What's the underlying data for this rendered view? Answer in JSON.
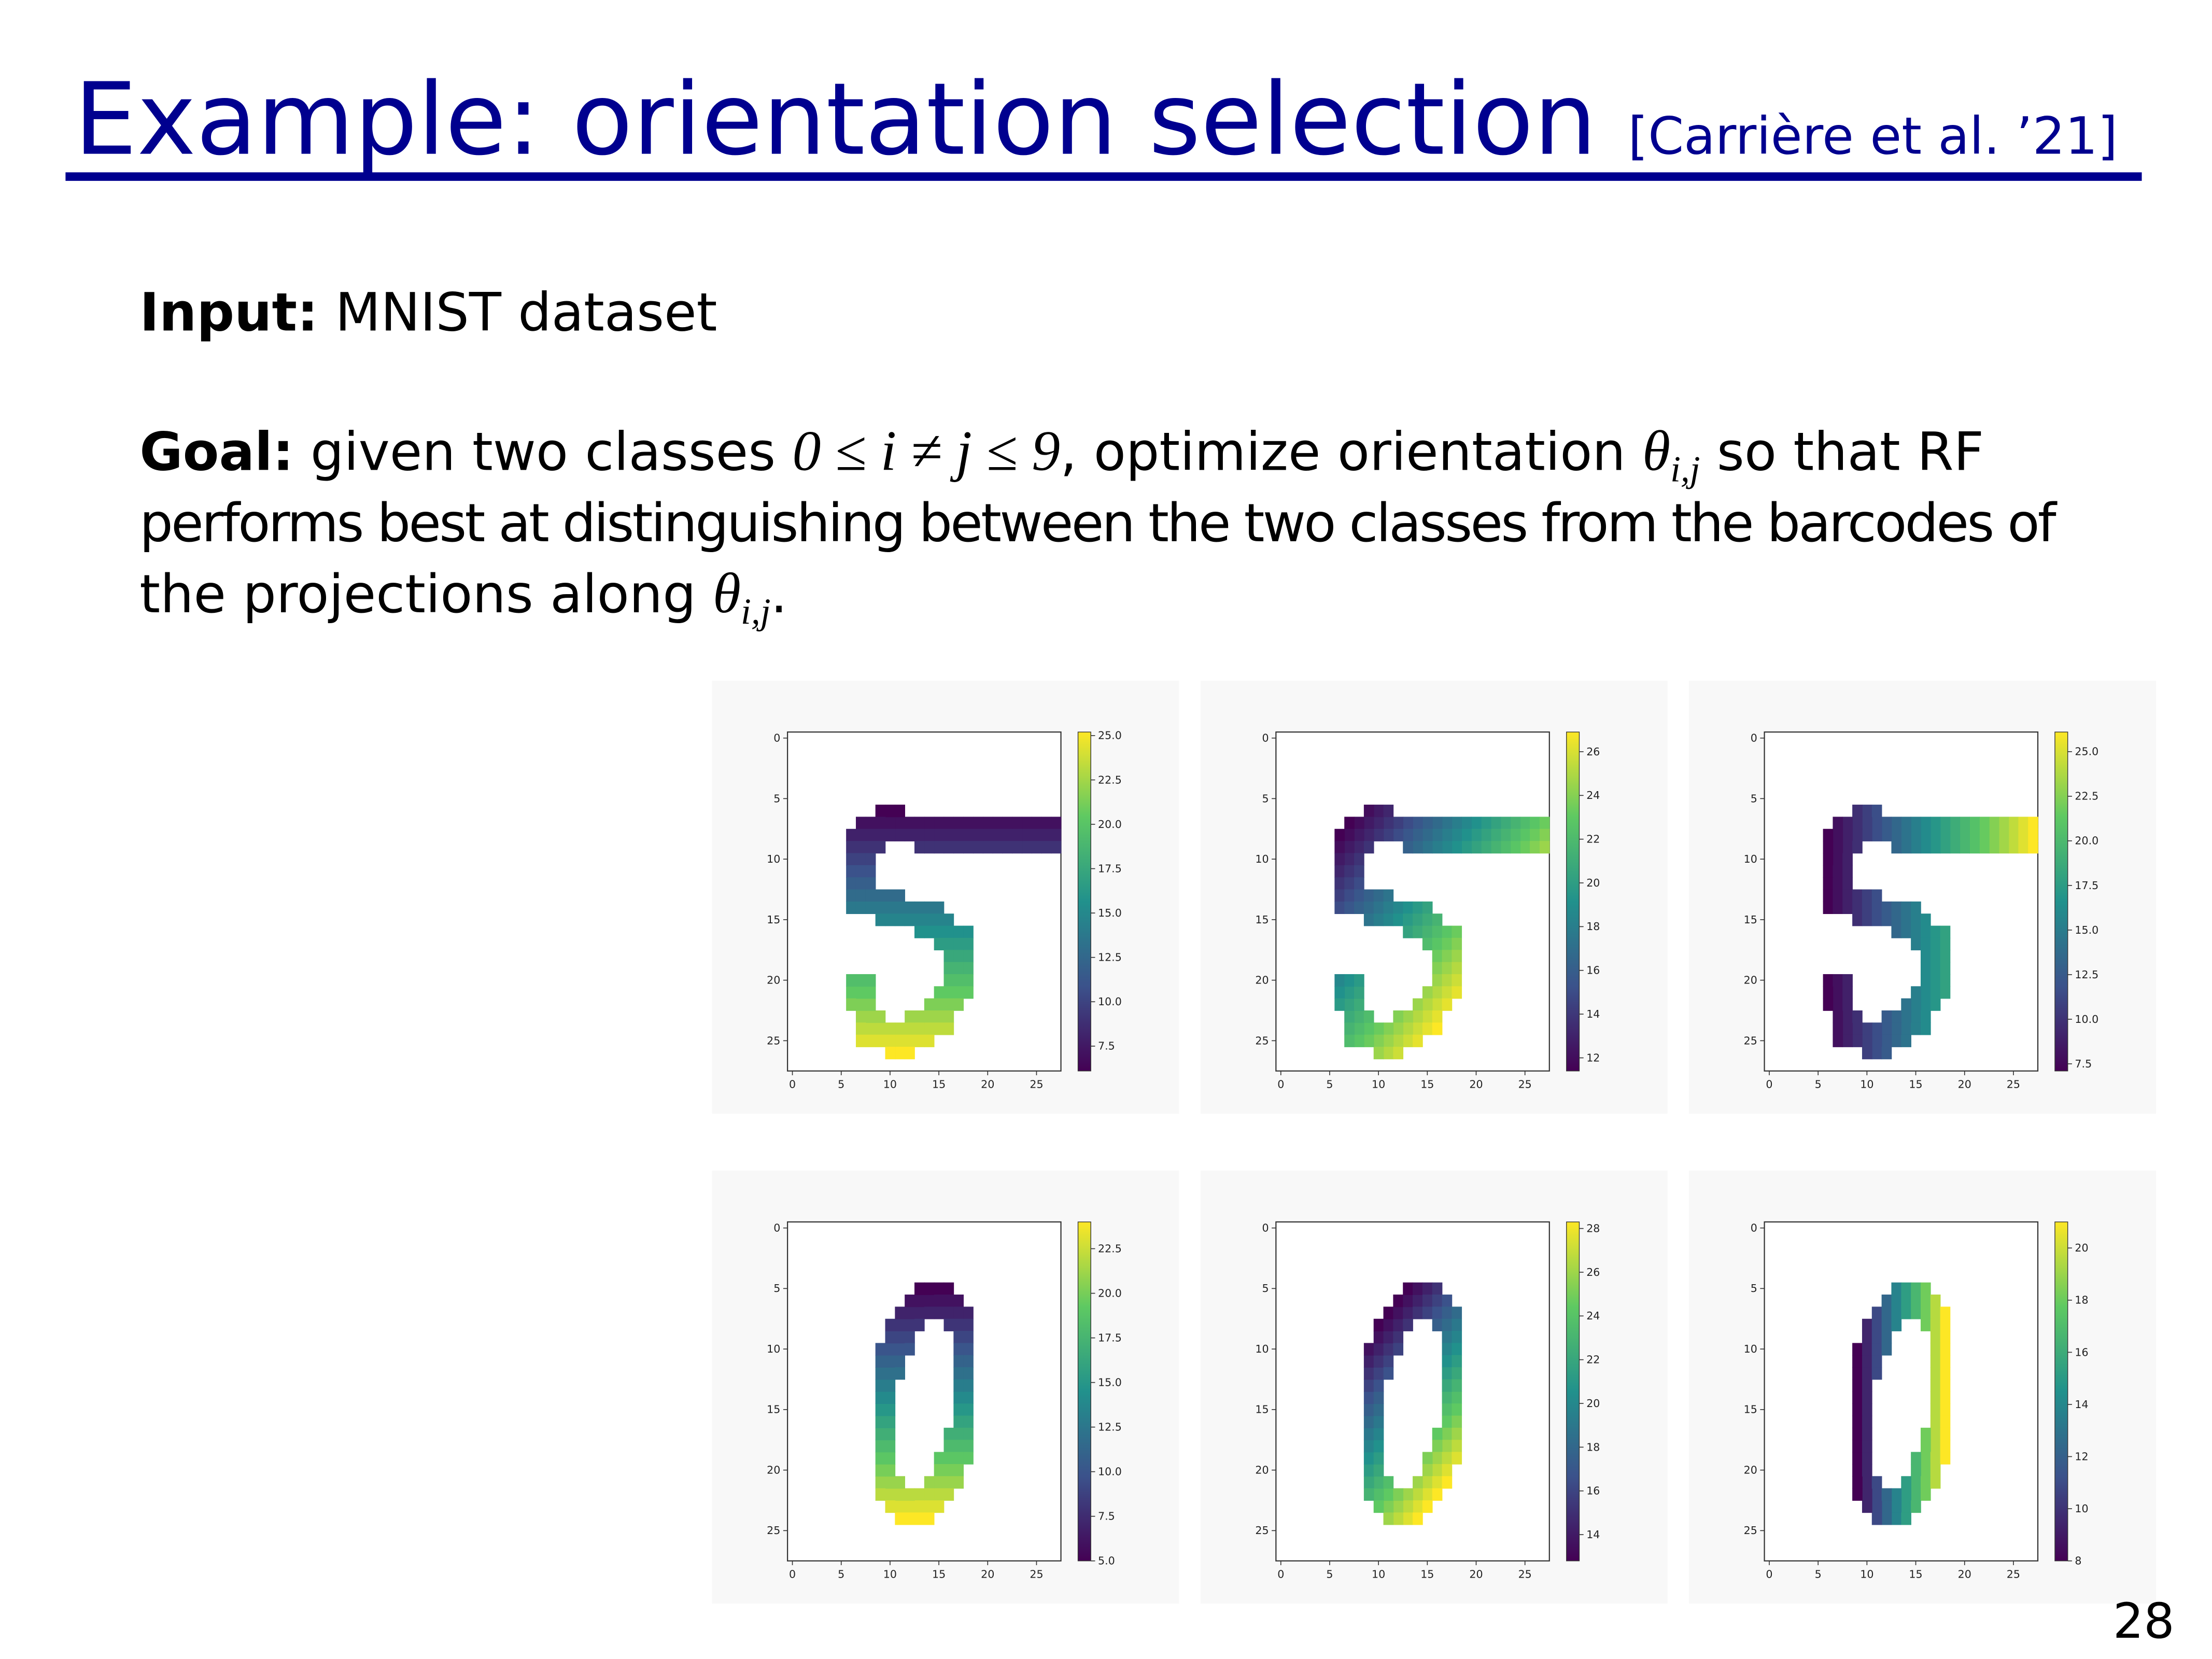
{
  "header": {
    "title": "Example: orientation selection",
    "citation": "[Carrière et al. ’21]"
  },
  "body": {
    "input": {
      "label": "Input:",
      "text": "MNIST dataset"
    },
    "goal": {
      "label": "Goal:",
      "text1": " given two classes ",
      "math": "0 ≤ i ≠ j ≤ 9",
      "text2": ", optimize orientation ",
      "theta": "θ",
      "sub": "i,j",
      "text3": " so that RF",
      "line2": "performs best at distinguishing between the two classes from the barcodes of",
      "line3": "the projections along ",
      "end": "."
    }
  },
  "figures": {
    "axes": {
      "ticks": [
        0,
        5,
        10,
        15,
        20,
        25
      ],
      "xlim": [
        -0.5,
        27.5
      ],
      "ylim": [
        27.5,
        -0.5
      ]
    },
    "panels": [
      {
        "clim": [
          6.1,
          25.2
        ],
        "colorbar_ticks": [
          7.5,
          {
            "value": 10,
            "label": "10.0"
          },
          12.5,
          {
            "value": 15,
            "label": "15.0"
          },
          17.5,
          {
            "value": 20,
            "label": "20.0"
          },
          22.5,
          {
            "value": 25,
            "label": "25.0"
          }
        ]
      },
      {
        "clim": [
          11.4,
          26.9
        ],
        "colorbar_ticks": [
          12,
          14,
          16,
          18,
          20,
          22,
          24,
          26
        ]
      },
      {
        "clim": [
          7.1,
          26.1
        ],
        "colorbar_ticks": [
          7.5,
          {
            "value": 10,
            "label": "10.0"
          },
          12.5,
          {
            "value": 15,
            "label": "15.0"
          },
          17.5,
          {
            "value": 20,
            "label": "20.0"
          },
          22.5,
          {
            "value": 25,
            "label": "25.0"
          }
        ]
      },
      {
        "clim": [
          5.0,
          24.0
        ],
        "colorbar_ticks": [
          {
            "value": 5,
            "label": "5.0"
          },
          7.5,
          {
            "value": 10,
            "label": "10.0"
          },
          12.5,
          {
            "value": 15,
            "label": "15.0"
          },
          17.5,
          {
            "value": 20,
            "label": "20.0"
          },
          22.5
        ]
      },
      {
        "clim": [
          12.8,
          28.3
        ],
        "colorbar_ticks": [
          14,
          16,
          18,
          20,
          22,
          24,
          26,
          28
        ]
      },
      {
        "clim": [
          8,
          21
        ],
        "colorbar_ticks": [
          8,
          10,
          12,
          14,
          16,
          18,
          20
        ]
      }
    ]
  },
  "page_number": "28"
}
